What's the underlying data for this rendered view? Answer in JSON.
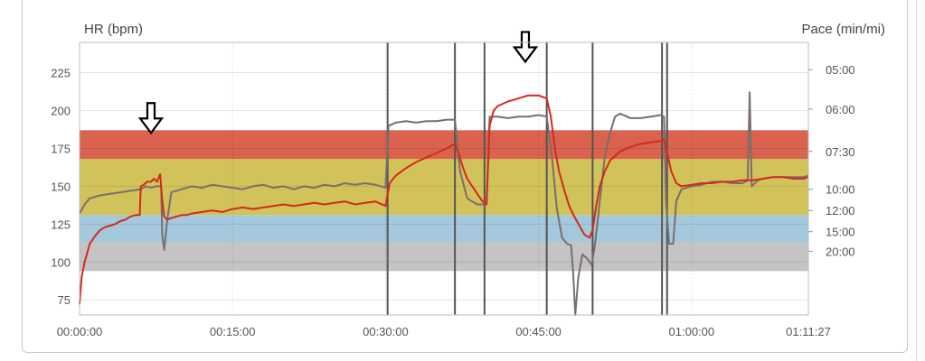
{
  "chart_data": {
    "type": "line",
    "ylabel_left": "HR (bpm)",
    "ylabel_right": "Pace (min/mi)",
    "x_ticks": [
      {
        "t": 0,
        "label": "00:00:00"
      },
      {
        "t": 15,
        "label": "00:15:00"
      },
      {
        "t": 30,
        "label": "00:30:00"
      },
      {
        "t": 45,
        "label": "00:45:00"
      },
      {
        "t": 60,
        "label": "01:00:00"
      },
      {
        "t": 71.45,
        "label": "01:11:27"
      }
    ],
    "xlim": [
      0,
      71.45
    ],
    "ylim": [
      65,
      245
    ],
    "y_ticks_left": [
      75,
      100,
      125,
      150,
      175,
      200,
      225
    ],
    "y_ticks_right": [
      {
        "label": "05:00",
        "hr": 227
      },
      {
        "label": "06:00",
        "hr": 201
      },
      {
        "label": "07:30",
        "hr": 173
      },
      {
        "label": "10:00",
        "hr": 148
      },
      {
        "label": "12:00",
        "hr": 134
      },
      {
        "label": "15:00",
        "hr": 120
      },
      {
        "label": "20:00",
        "hr": 107
      }
    ],
    "zones": [
      {
        "from": 94,
        "to": 113,
        "color": "#c4c4c4"
      },
      {
        "from": 113,
        "to": 131,
        "color": "#a4c8dc"
      },
      {
        "from": 131,
        "to": 168,
        "color": "#d2c25a"
      },
      {
        "from": 168,
        "to": 187,
        "color": "#d9634e"
      }
    ],
    "lap_markers": [
      30.2,
      36.8,
      39.7,
      45.8,
      50.3,
      57.1,
      57.6
    ],
    "annotations": [
      {
        "type": "arrow-down",
        "t": 7.0,
        "hr": 190
      },
      {
        "type": "arrow-down",
        "t": 43.7,
        "hr": 237
      }
    ],
    "series": [
      {
        "name": "",
        "color": "#d22a1e",
        "points": [
          [
            0,
            72
          ],
          [
            0.2,
            90
          ],
          [
            0.5,
            100
          ],
          [
            1,
            112
          ],
          [
            1.5,
            117
          ],
          [
            2,
            121
          ],
          [
            2.5,
            123
          ],
          [
            3,
            124
          ],
          [
            3.5,
            125
          ],
          [
            4,
            127
          ],
          [
            4.5,
            128
          ],
          [
            5,
            130
          ],
          [
            5.5,
            131
          ],
          [
            5.9,
            131
          ],
          [
            6,
            150
          ],
          [
            6.3,
            151
          ],
          [
            6.6,
            153
          ],
          [
            7,
            153
          ],
          [
            7.3,
            155
          ],
          [
            7.6,
            153
          ],
          [
            7.9,
            158
          ],
          [
            8.1,
            141
          ],
          [
            8.3,
            130
          ],
          [
            8.6,
            128
          ],
          [
            9,
            129
          ],
          [
            9.5,
            130
          ],
          [
            10,
            131
          ],
          [
            10.5,
            131
          ],
          [
            11,
            132
          ],
          [
            12,
            133
          ],
          [
            13,
            134
          ],
          [
            14,
            133
          ],
          [
            15,
            135
          ],
          [
            16,
            136
          ],
          [
            17,
            135
          ],
          [
            18,
            136
          ],
          [
            19,
            137
          ],
          [
            20,
            138
          ],
          [
            21,
            137
          ],
          [
            22,
            138
          ],
          [
            23,
            139
          ],
          [
            24,
            138
          ],
          [
            25,
            139
          ],
          [
            26,
            140
          ],
          [
            27,
            138
          ],
          [
            28,
            139
          ],
          [
            29,
            140
          ],
          [
            30,
            137
          ],
          [
            30.4,
            152
          ],
          [
            31,
            157
          ],
          [
            32,
            162
          ],
          [
            33,
            166
          ],
          [
            34,
            169
          ],
          [
            35,
            172
          ],
          [
            36,
            175
          ],
          [
            36.8,
            178
          ],
          [
            37.2,
            171
          ],
          [
            37.6,
            162
          ],
          [
            38,
            155
          ],
          [
            38.5,
            150
          ],
          [
            39,
            145
          ],
          [
            39.5,
            140
          ],
          [
            39.9,
            138
          ],
          [
            40.2,
            190
          ],
          [
            40.6,
            200
          ],
          [
            41,
            203
          ],
          [
            42,
            206
          ],
          [
            43,
            208
          ],
          [
            44,
            210
          ],
          [
            45,
            210
          ],
          [
            45.8,
            208
          ],
          [
            46.2,
            196
          ],
          [
            46.6,
            175
          ],
          [
            47,
            160
          ],
          [
            47.5,
            148
          ],
          [
            48,
            137
          ],
          [
            48.5,
            130
          ],
          [
            49,
            124
          ],
          [
            49.5,
            118
          ],
          [
            50,
            116
          ],
          [
            50.3,
            121
          ],
          [
            50.6,
            135
          ],
          [
            51,
            150
          ],
          [
            51.5,
            160
          ],
          [
            52,
            167
          ],
          [
            53,
            173
          ],
          [
            54,
            176
          ],
          [
            55,
            178
          ],
          [
            56,
            179
          ],
          [
            57,
            180
          ],
          [
            57.3,
            181
          ],
          [
            57.6,
            172
          ],
          [
            58,
            160
          ],
          [
            58.5,
            152
          ],
          [
            59,
            150
          ],
          [
            60,
            151
          ],
          [
            61,
            152
          ],
          [
            62,
            152
          ],
          [
            63,
            153
          ],
          [
            64,
            153
          ],
          [
            65,
            154
          ],
          [
            66,
            154
          ],
          [
            67,
            155
          ],
          [
            68,
            156
          ],
          [
            69,
            156
          ],
          [
            70,
            155
          ],
          [
            71,
            155
          ],
          [
            71.4,
            156
          ]
        ]
      },
      {
        "name": "",
        "color": "#7a6e6e",
        "points": [
          [
            0,
            132
          ],
          [
            0.5,
            138
          ],
          [
            1,
            142
          ],
          [
            2,
            144
          ],
          [
            3,
            145
          ],
          [
            4,
            146
          ],
          [
            5,
            147
          ],
          [
            6,
            148
          ],
          [
            6.5,
            150
          ],
          [
            7,
            149
          ],
          [
            7.5,
            150
          ],
          [
            8,
            150
          ],
          [
            8.1,
            118
          ],
          [
            8.3,
            108
          ],
          [
            8.6,
            128
          ],
          [
            9,
            146
          ],
          [
            10,
            148
          ],
          [
            11,
            150
          ],
          [
            12,
            149
          ],
          [
            13,
            151
          ],
          [
            14,
            150
          ],
          [
            15,
            149
          ],
          [
            16,
            148
          ],
          [
            17,
            150
          ],
          [
            18,
            151
          ],
          [
            19,
            149
          ],
          [
            20,
            150
          ],
          [
            21,
            148
          ],
          [
            22,
            150
          ],
          [
            23,
            149
          ],
          [
            24,
            151
          ],
          [
            25,
            150
          ],
          [
            26,
            152
          ],
          [
            27,
            151
          ],
          [
            28,
            152
          ],
          [
            29,
            151
          ],
          [
            30,
            149
          ],
          [
            30.3,
            190
          ],
          [
            31,
            192
          ],
          [
            32,
            193
          ],
          [
            33,
            192
          ],
          [
            34,
            193
          ],
          [
            35,
            193
          ],
          [
            36,
            194
          ],
          [
            36.8,
            194
          ],
          [
            37.3,
            160
          ],
          [
            38,
            142
          ],
          [
            38.5,
            140
          ],
          [
            39,
            138
          ],
          [
            39.5,
            138
          ],
          [
            39.9,
            138
          ],
          [
            40.2,
            196
          ],
          [
            41,
            196
          ],
          [
            42,
            195
          ],
          [
            43,
            196
          ],
          [
            44,
            196
          ],
          [
            45,
            197
          ],
          [
            45.8,
            196
          ],
          [
            46.3,
            170
          ],
          [
            46.8,
            135
          ],
          [
            47.3,
            116
          ],
          [
            47.8,
            112
          ],
          [
            48.2,
            111
          ],
          [
            48.4,
            92
          ],
          [
            48.6,
            65
          ],
          [
            48.9,
            90
          ],
          [
            49.3,
            105
          ],
          [
            49.8,
            102
          ],
          [
            50.2,
            98
          ],
          [
            50.5,
            110
          ],
          [
            51,
            140
          ],
          [
            51.5,
            170
          ],
          [
            52,
            185
          ],
          [
            52.5,
            196
          ],
          [
            53,
            198
          ],
          [
            54,
            195
          ],
          [
            55,
            195
          ],
          [
            56,
            196
          ],
          [
            57,
            197
          ],
          [
            57.3,
            196
          ],
          [
            57.5,
            140
          ],
          [
            57.8,
            112
          ],
          [
            58.2,
            112
          ],
          [
            58.5,
            140
          ],
          [
            59,
            148
          ],
          [
            60,
            150
          ],
          [
            61,
            151
          ],
          [
            62,
            153
          ],
          [
            63,
            153
          ],
          [
            64,
            152
          ],
          [
            65,
            152
          ],
          [
            65.5,
            154
          ],
          [
            65.7,
            212
          ],
          [
            65.9,
            150
          ],
          [
            66.5,
            154
          ],
          [
            67,
            155
          ],
          [
            68,
            156
          ],
          [
            69,
            156
          ],
          [
            70,
            156
          ],
          [
            71,
            156
          ],
          [
            71.4,
            157
          ]
        ]
      }
    ]
  }
}
